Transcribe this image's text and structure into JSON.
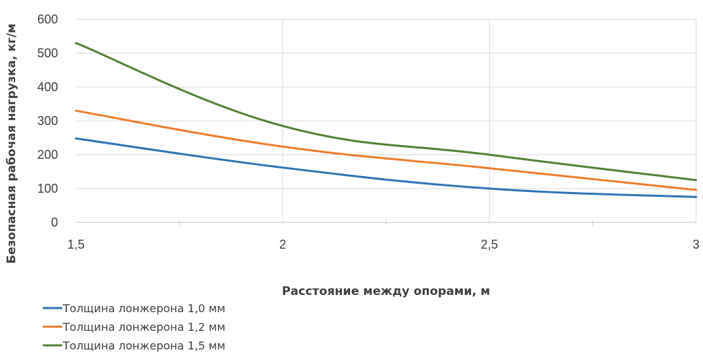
{
  "chart_data": {
    "type": "line",
    "title": "",
    "xlabel": "Расстояние между опорами, м",
    "ylabel": "Безопасная рабочая нагрузка, кг/м",
    "xlim": [
      1.5,
      3
    ],
    "ylim": [
      0,
      600
    ],
    "x_ticks": [
      "1,5",
      "2",
      "2,5",
      "3"
    ],
    "y_ticks": [
      "0",
      "100",
      "200",
      "300",
      "400",
      "500",
      "600"
    ],
    "grid": true,
    "legend_position": "bottom-left",
    "series": [
      {
        "name": "Толщина лонжерона 1,0 мм",
        "color": "#2e75b6",
        "x": [
          1.5,
          2,
          2.5,
          3
        ],
        "values": [
          248,
          162,
          100,
          75
        ]
      },
      {
        "name": "Толщина лонжерона 1,2 мм",
        "color": "#ed7d31",
        "x": [
          1.5,
          2,
          2.5,
          3
        ],
        "values": [
          330,
          224,
          160,
          96
        ]
      },
      {
        "name": "Толщина лонжерона 1,5 мм",
        "color": "#548235",
        "x": [
          1.5,
          2,
          2.5,
          3
        ],
        "values": [
          530,
          285,
          200,
          125
        ]
      }
    ]
  }
}
